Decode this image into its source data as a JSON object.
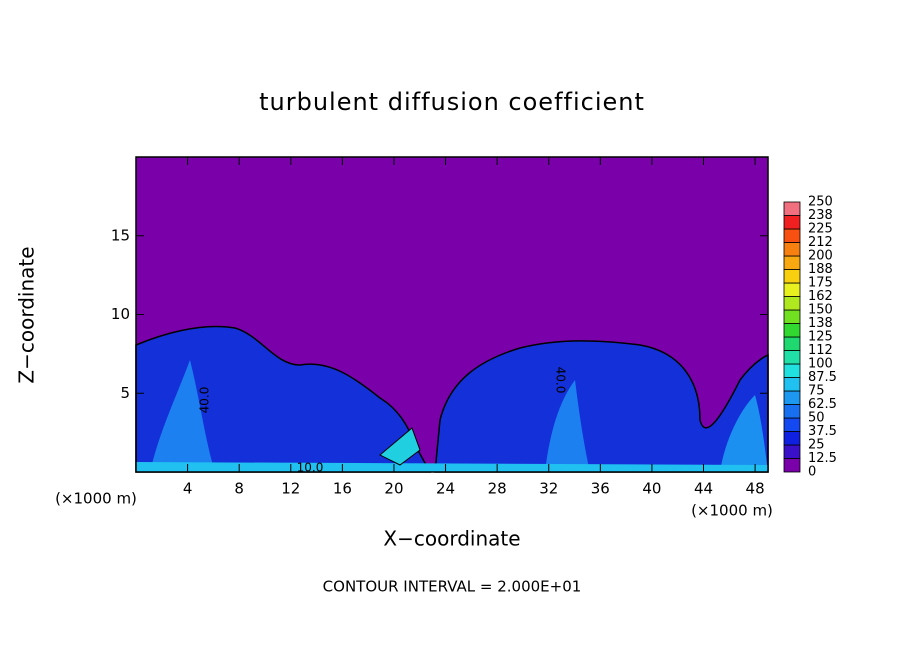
{
  "chart_data": {
    "type": "contour",
    "title": "turbulent diffusion coefficient",
    "x_label": "X−coordinate",
    "y_label": "Z−coordinate",
    "x_unit": "(×1000 m)",
    "y_unit": "(×1000 m)",
    "footer": "CONTOUR INTERVAL = 2.000E+01",
    "annotations": [
      "40.0",
      "40.0",
      "10.0"
    ],
    "xlim": [
      0,
      49
    ],
    "xticks": [
      4,
      8,
      12,
      16,
      20,
      24,
      28,
      32,
      36,
      40,
      44,
      48
    ],
    "ylim": [
      0,
      20
    ],
    "yticks": [
      5,
      10,
      15
    ],
    "colorbar": {
      "levels": [
        0,
        12.5,
        25,
        37.5,
        50,
        62.5,
        75,
        87.5,
        100,
        112,
        125,
        138,
        150,
        162,
        175,
        188,
        200,
        212,
        225,
        238,
        250
      ],
      "colors": [
        "#7a00aa",
        "#3a10c8",
        "#1020e0",
        "#1448f0",
        "#1870f0",
        "#1c98f0",
        "#20c0f0",
        "#20e0e0",
        "#20e0a8",
        "#20d870",
        "#30d830",
        "#70e020",
        "#b0e820",
        "#e8f020",
        "#f8d010",
        "#f8a810",
        "#f88010",
        "#f85010",
        "#f02020",
        "#f07080"
      ]
    }
  }
}
